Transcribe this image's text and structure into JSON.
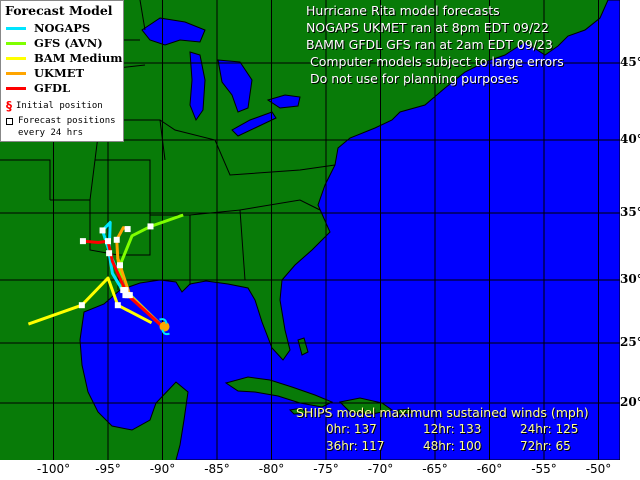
{
  "title_lines": [
    "Hurricane Rita model forecasts",
    "NOGAPS UKMET ran at 8pm EDT 09/22",
    "BAMM GFDL GFS ran at 2am EDT 09/23",
    "Computer models subject to large errors",
    "Do not use for planning purposes"
  ],
  "legend": {
    "title": "Forecast Model",
    "models": [
      {
        "label": "NOGAPS",
        "color": "#00e5ff"
      },
      {
        "label": "GFS (AVN)",
        "color": "#7fff00"
      },
      {
        "label": "BAM Medium",
        "color": "#ffff00"
      },
      {
        "label": "UKMET",
        "color": "#ffa500"
      },
      {
        "label": "GFDL",
        "color": "#ff0000"
      }
    ],
    "initial_position": "Initial position",
    "forecast_positions_1": "Forecast positions",
    "forecast_positions_2": "every 24 hrs"
  },
  "ships": {
    "header": "SHIPS model maximum sustained winds (mph)",
    "values": [
      "0hr: 137",
      "12hr: 133",
      "24hr: 125",
      "36hr: 117",
      "48hr: 100",
      "72hr: 65"
    ]
  },
  "axes": {
    "lon_labels": [
      "-100°",
      "-95°",
      "-90°",
      "-85°",
      "-80°",
      "-75°",
      "-70°",
      "-65°",
      "-60°",
      "-55°",
      "-50°"
    ],
    "lat_labels": [
      "45°",
      "40°",
      "35°",
      "30°",
      "25°",
      "20°"
    ]
  },
  "colors": {
    "land": "#087b08",
    "ocean": "#0000ff",
    "borders": "#000000"
  },
  "initial_position": {
    "lon": -90.0,
    "lat": 26.3
  },
  "tracks": [
    {
      "model": "NOGAPS",
      "color": "#00e5ff",
      "points": [
        [
          -90.0,
          26.3
        ],
        [
          -93.4,
          29.2
        ],
        [
          -94.8,
          31.9
        ],
        [
          -95.5,
          33.7
        ],
        [
          -94.8,
          34.3
        ],
        [
          -94.9,
          32.0
        ],
        [
          -94.6,
          30.5
        ],
        [
          -93.4,
          28.8
        ]
      ]
    },
    {
      "model": "GFS (AVN)",
      "color": "#7fff00",
      "points": [
        [
          -90.5,
          26.7
        ],
        [
          -93.6,
          29.2
        ],
        [
          -94.1,
          31.6
        ],
        [
          -93.9,
          31.1
        ],
        [
          -92.8,
          33.3
        ],
        [
          -91.1,
          34.0
        ],
        [
          -88.1,
          34.85
        ]
      ]
    },
    {
      "model": "BAM Medium",
      "color": "#ffff00",
      "points": [
        [
          -91.0,
          26.6
        ],
        [
          -94.1,
          28.0
        ],
        [
          -95.0,
          30.15
        ],
        [
          -97.4,
          28.0
        ],
        [
          -102.3,
          26.5
        ]
      ]
    },
    {
      "model": "UKMET",
      "color": "#ffa500",
      "points": [
        [
          -90.0,
          26.3
        ],
        [
          -93.0,
          28.8
        ],
        [
          -94.1,
          31.6
        ],
        [
          -94.2,
          33.0
        ],
        [
          -93.6,
          33.9
        ],
        [
          -93.2,
          33.8
        ]
      ]
    },
    {
      "model": "GFDL",
      "color": "#ff0000",
      "points": [
        [
          -90.0,
          26.3
        ],
        [
          -93.2,
          28.8
        ],
        [
          -94.6,
          31.4
        ],
        [
          -95.0,
          32.9
        ],
        [
          -95.9,
          32.8
        ],
        [
          -97.3,
          32.9
        ]
      ]
    }
  ]
}
